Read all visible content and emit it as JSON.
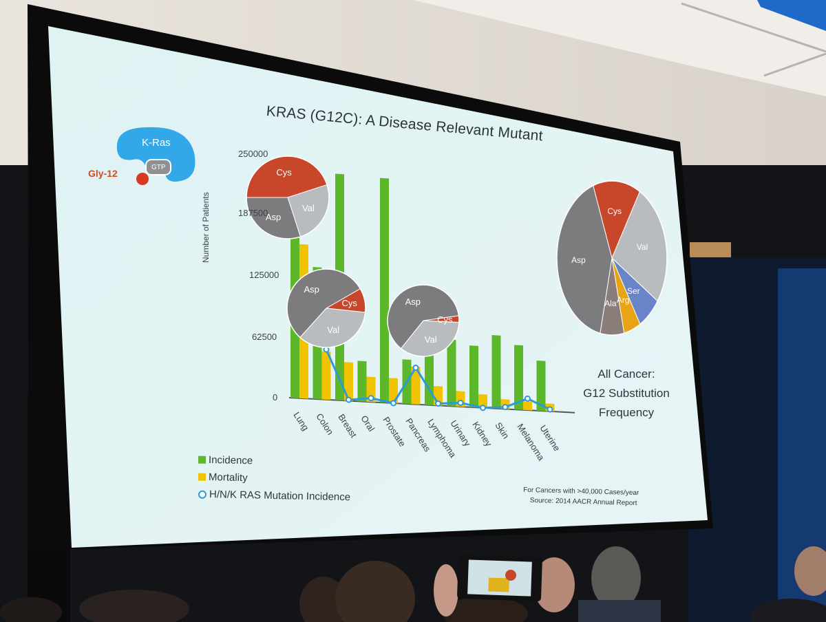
{
  "slide": {
    "title": "KRAS (G12C):  A Disease Relevant Mutant",
    "protein": {
      "kras": "K-Ras",
      "gtp": "GTP",
      "gly": "Gly-12"
    },
    "ylabel": "Number of Patients",
    "source": [
      "For Cancers with >40,000 Cases/year",
      "Source:  2014 AACR Annual Report"
    ],
    "all_cancer": [
      "All Cancer:",
      "G12 Substitution",
      "Frequency"
    ],
    "legend": [
      "Incidence",
      "Mortality",
      "H/N/K RAS Mutation Incidence"
    ]
  },
  "colors": {
    "incidence": "#5cb82a",
    "mortality": "#f2c300",
    "mutation": "#2b9ad8",
    "cys": "#c8462a",
    "val": "#b9bcbf",
    "asp": "#7c7c7e",
    "ser": "#6a84c8",
    "arg": "#e8a316",
    "ala": "#8a7d7a",
    "kras": "#33a8e8"
  },
  "chart_data": {
    "type": "bar",
    "categories": [
      "Lung",
      "Colon",
      "Breast",
      "Oral",
      "Prostate",
      "Pancreas",
      "Lymphoma",
      "Urinary",
      "Kidney",
      "Skin",
      "Melanoma",
      "Uterine"
    ],
    "ytick_labels": [
      "250000",
      "187500",
      "125000",
      "62500",
      "0"
    ],
    "ylim": [
      0,
      250000
    ],
    "ylabel": "Number of Patients",
    "series": [
      {
        "name": "Incidence",
        "type": "bar",
        "values": [
          228000,
          137000,
          235000,
          42000,
          233000,
          46000,
          79000,
          69000,
          64000,
          76000,
          67000,
          52000
        ]
      },
      {
        "name": "Mortality",
        "type": "bar",
        "values": [
          160000,
          50000,
          40000,
          26000,
          26000,
          39000,
          20000,
          16000,
          14000,
          10000,
          9000,
          8000
        ]
      },
      {
        "name": "H/N/K RAS Mutation Incidence",
        "type": "line",
        "values": [
          null,
          52000,
          1000,
          4000,
          0,
          38000,
          2000,
          4000,
          0,
          2000,
          12000,
          2000
        ]
      }
    ],
    "legend": "bottom-left"
  },
  "pies": [
    {
      "name": "lung",
      "slices": [
        {
          "label": "Cys",
          "value": 45
        },
        {
          "label": "Val",
          "value": 25
        },
        {
          "label": "Asp",
          "value": 30
        }
      ]
    },
    {
      "name": "colon",
      "slices": [
        {
          "label": "Cys",
          "value": 10
        },
        {
          "label": "Val",
          "value": 35
        },
        {
          "label": "Asp",
          "value": 55
        }
      ]
    },
    {
      "name": "pancreas",
      "slices": [
        {
          "label": "Cys",
          "value": 3
        },
        {
          "label": "Val",
          "value": 35
        },
        {
          "label": "Asp",
          "value": 62
        }
      ]
    },
    {
      "name": "all-cancer",
      "slices": [
        {
          "label": "Cys",
          "value": 14
        },
        {
          "label": "Val",
          "value": 26
        },
        {
          "label": "Ser",
          "value": 7
        },
        {
          "label": "Arg",
          "value": 5
        },
        {
          "label": "Ala",
          "value": 7
        },
        {
          "label": "Asp",
          "value": 41
        }
      ]
    }
  ]
}
